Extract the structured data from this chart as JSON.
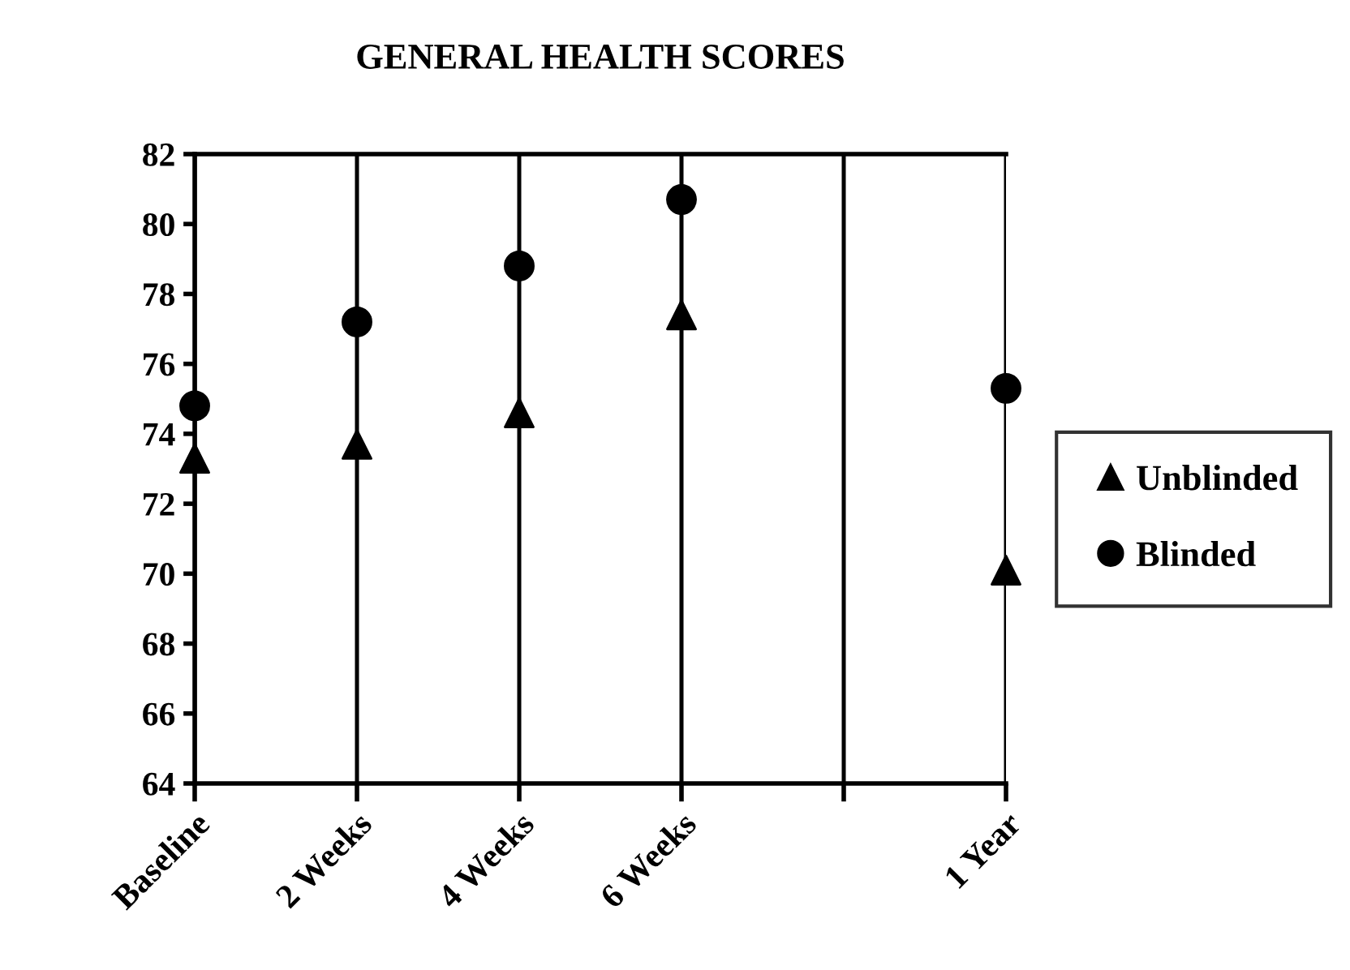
{
  "chart_data": {
    "type": "scatter",
    "title": "GENERAL HEALTH SCORES",
    "categories": [
      "Baseline",
      "2 Weeks",
      "4 Weeks",
      "6 Weeks",
      null,
      "1 Year"
    ],
    "series": [
      {
        "name": "Unblinded",
        "color": "#000000",
        "marker": "triangle",
        "values": [
          73.3,
          73.7,
          74.6,
          77.4,
          null,
          70.1
        ]
      },
      {
        "name": "Blinded",
        "color": "#000000",
        "marker": "circle",
        "values": [
          74.8,
          77.2,
          78.8,
          80.7,
          null,
          75.3
        ]
      }
    ],
    "ylim": [
      64,
      82
    ],
    "yticks": [
      64,
      66,
      68,
      70,
      72,
      74,
      76,
      78,
      80,
      82
    ],
    "grid": "x",
    "legend": "right"
  }
}
